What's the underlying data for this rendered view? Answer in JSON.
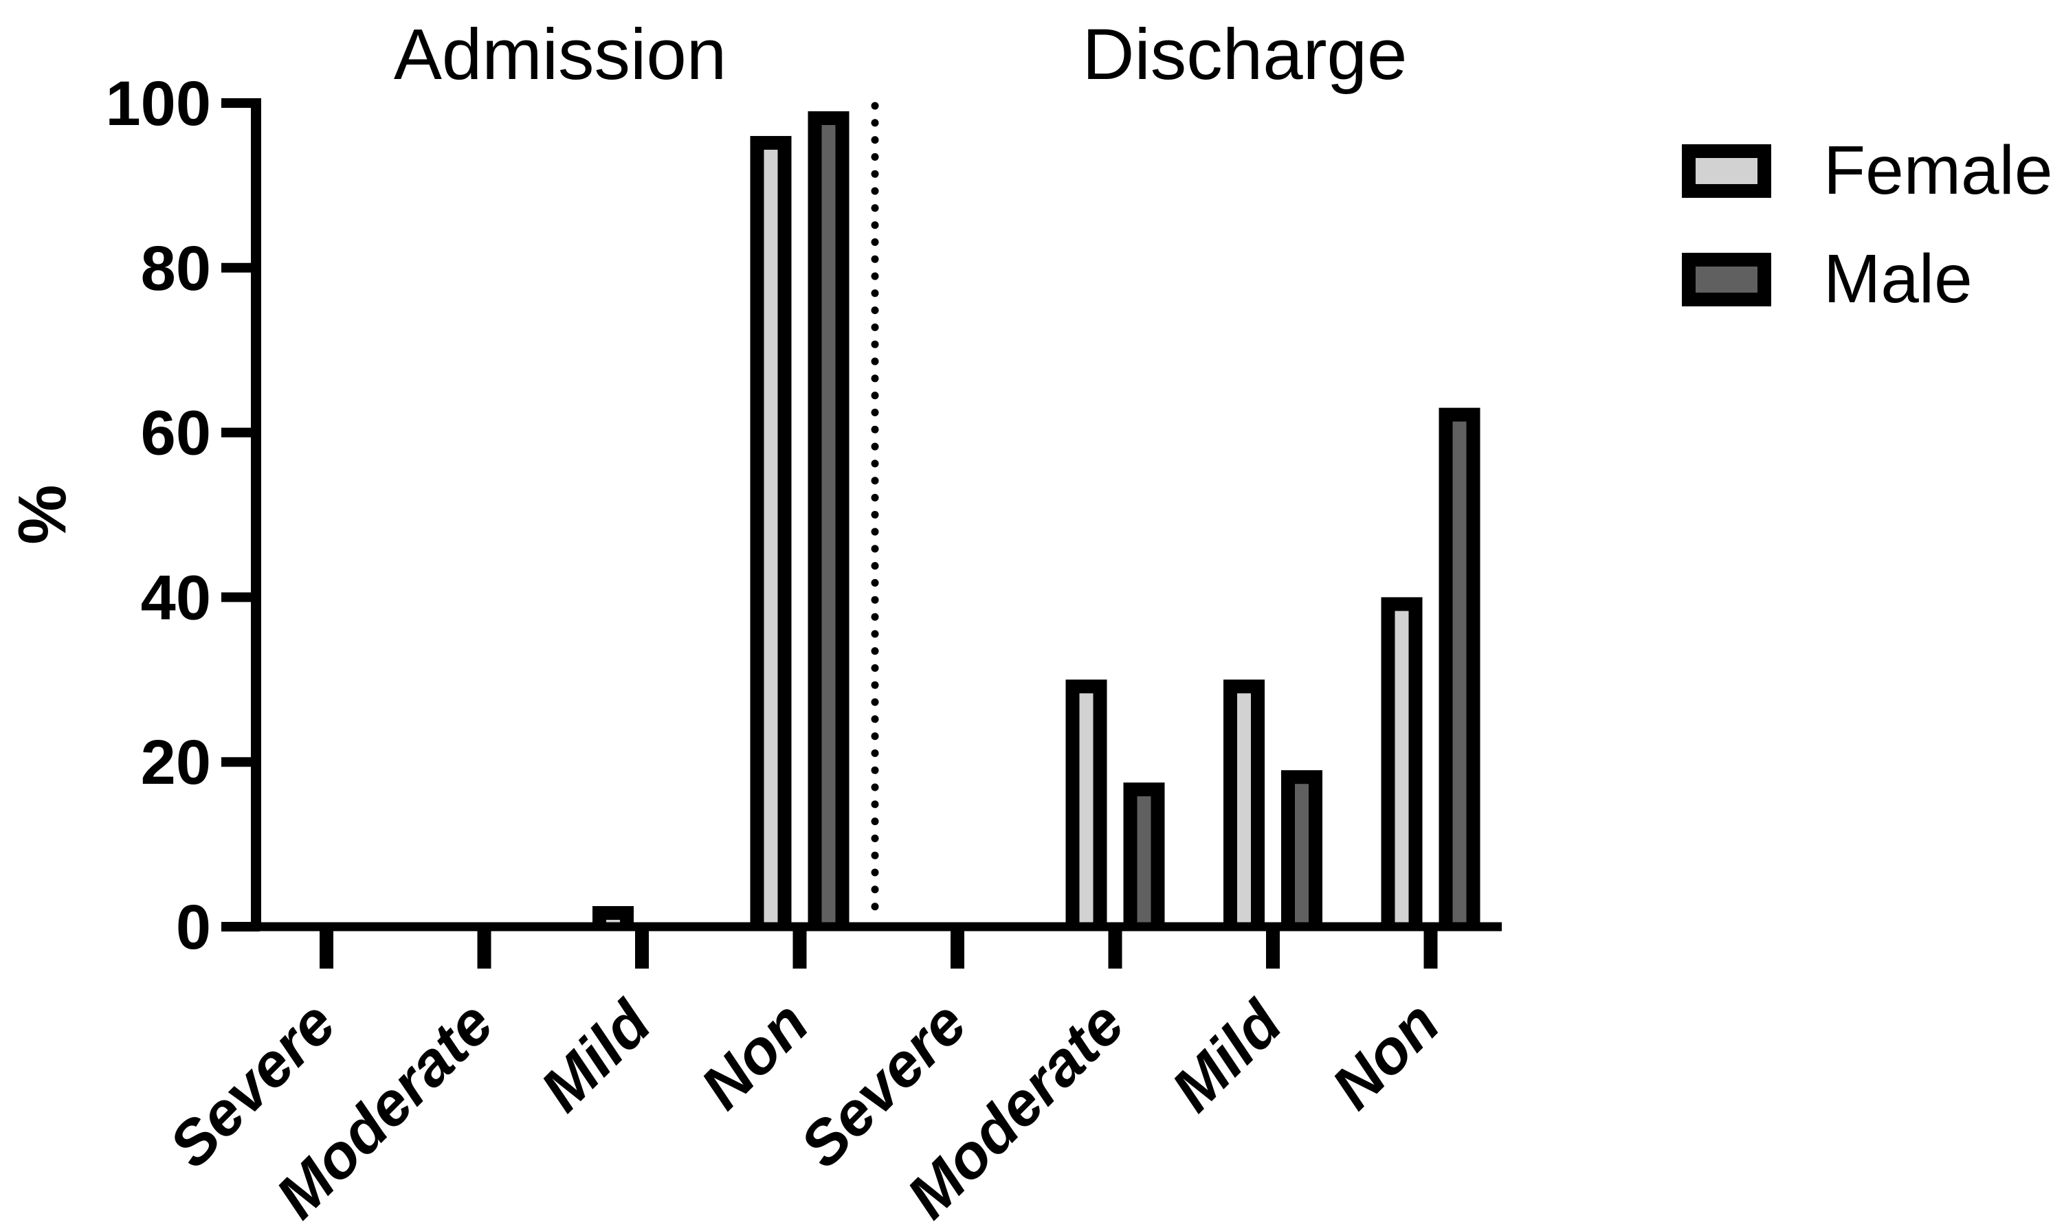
{
  "chart_data": {
    "type": "bar",
    "section_titles": [
      "Admission",
      "Discharge"
    ],
    "ylabel": "%",
    "ylim": [
      0,
      100
    ],
    "yticks": [
      0,
      20,
      40,
      60,
      80,
      100
    ],
    "categories": [
      "Severe",
      "Moderate",
      "Mild",
      "Non",
      "Severe",
      "Moderate",
      "Mild",
      "Non"
    ],
    "series": [
      {
        "name": "Female",
        "color": "#d2d2d2",
        "values": [
          0,
          0.5,
          2.5,
          96,
          0,
          30,
          30,
          40
        ]
      },
      {
        "name": "Male",
        "color": "#606060",
        "values": [
          0,
          0.3,
          0.4,
          99,
          0,
          17.5,
          19,
          63
        ]
      }
    ],
    "bar_outline_color": "#000000",
    "axis_color": "#000000",
    "separator": {
      "style": "dotted",
      "after_category_index": 3
    },
    "legend_position": "top-right",
    "grid": false
  }
}
